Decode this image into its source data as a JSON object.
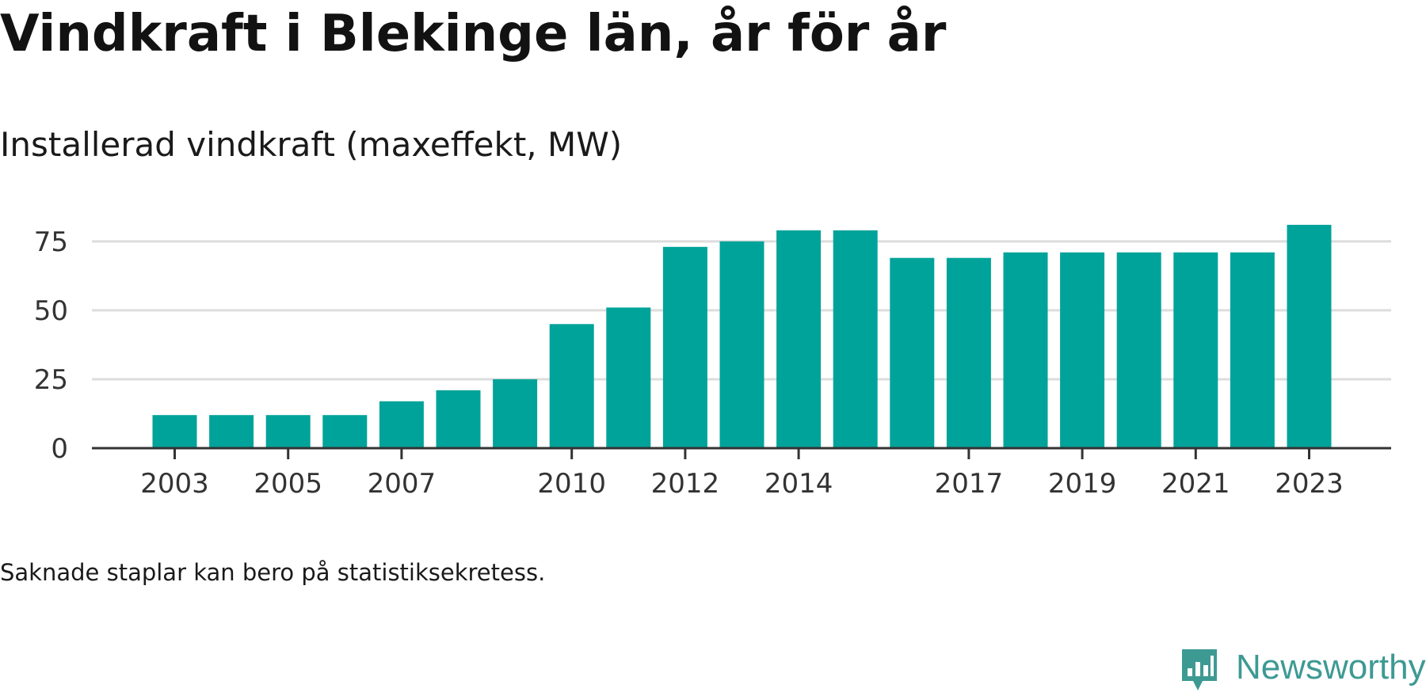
{
  "header": {
    "title": "Vindkraft i Blekinge län, år för år",
    "subtitle": "Installerad vindkraft (maxeffekt, MW)"
  },
  "footer": {
    "note": "Saknade staplar kan bero på statistiksekretess.",
    "brand": "Newsworthy"
  },
  "colors": {
    "bar": "#00a39a",
    "grid": "#dddddd",
    "axis": "#333333",
    "brand": "#3d9a93"
  },
  "icons": {
    "brand_logo": "newsworthy-logo-icon"
  },
  "chart_data": {
    "type": "bar",
    "categories": [
      2003,
      2004,
      2005,
      2006,
      2007,
      2008,
      2009,
      2010,
      2011,
      2012,
      2013,
      2014,
      2015,
      2016,
      2017,
      2018,
      2019,
      2020,
      2021,
      2022,
      2023
    ],
    "values": [
      12,
      12,
      12,
      12,
      17,
      21,
      25,
      45,
      51,
      73,
      75,
      79,
      79,
      69,
      69,
      71,
      71,
      71,
      71,
      71,
      81
    ],
    "x_ticks": [
      "2003",
      "2005",
      "2007",
      "2010",
      "2012",
      "2014",
      "2017",
      "2019",
      "2021",
      "2023"
    ],
    "y_ticks": [
      0,
      25,
      50,
      75
    ],
    "ylim": [
      0,
      85
    ],
    "xlabel": "",
    "ylabel": "",
    "grid": true,
    "legend": "none"
  }
}
